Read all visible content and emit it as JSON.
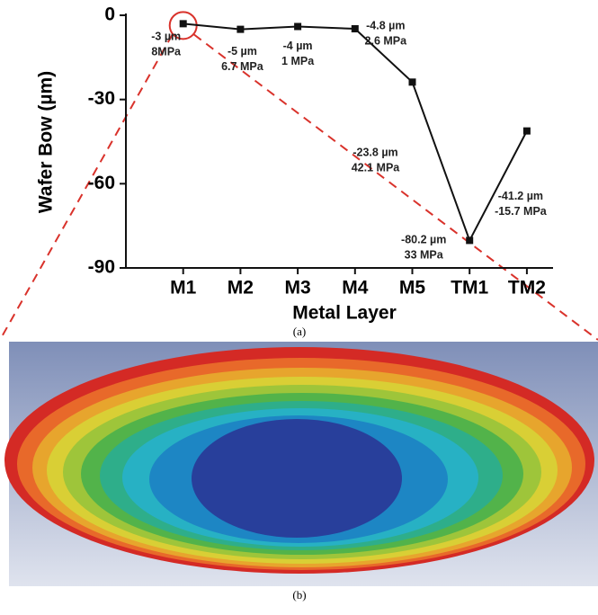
{
  "chart_data": {
    "type": "line",
    "caption": "(a)",
    "xlabel": "Metal Layer",
    "ylabel": "Wafer Bow (µm)",
    "categories": [
      "M1",
      "M2",
      "M3",
      "M4",
      "M5",
      "TM1",
      "TM2"
    ],
    "values": [
      -3,
      -5,
      -4,
      -4.8,
      -23.8,
      -80.2,
      -41.2
    ],
    "value_labels": [
      "-3 µm",
      "-5 µm",
      "-4 µm",
      "-4.8 µm",
      "-23.8 µm",
      "-80.2 µm",
      "-41.2 µm"
    ],
    "stress_labels": [
      "8MPa",
      "6.7 MPa",
      "1 MPa",
      "2.6 MPa",
      "42.1 MPa",
      "33 MPa",
      "-15.7 MPa"
    ],
    "color": "#111111",
    "ylim": [
      -90,
      0
    ],
    "yticks": [
      0,
      -30,
      -60,
      -90
    ]
  },
  "figure_b": {
    "caption": "(b)"
  }
}
